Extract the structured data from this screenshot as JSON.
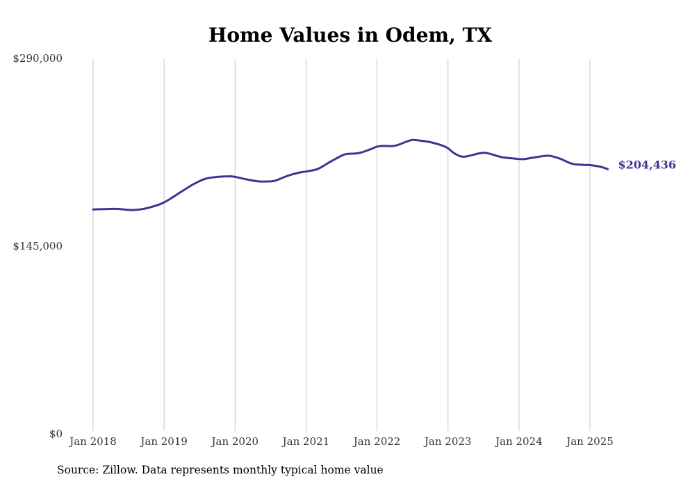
{
  "chart_data": {
    "type": "line",
    "title": "Home Values in Odem, TX",
    "xlabel": "",
    "ylabel": "",
    "ylim": [
      0,
      290000
    ],
    "y_ticks": [
      {
        "value": 0,
        "label": "$0"
      },
      {
        "value": 145000,
        "label": "$145,000"
      },
      {
        "value": 290000,
        "label": "$290,000"
      }
    ],
    "x_ticks": [
      {
        "value": 2018.0,
        "label": "Jan 2018"
      },
      {
        "value": 2019.0,
        "label": "Jan 2019"
      },
      {
        "value": 2020.0,
        "label": "Jan 2020"
      },
      {
        "value": 2021.0,
        "label": "Jan 2021"
      },
      {
        "value": 2022.0,
        "label": "Jan 2022"
      },
      {
        "value": 2023.0,
        "label": "Jan 2023"
      },
      {
        "value": 2024.0,
        "label": "Jan 2024"
      },
      {
        "value": 2025.0,
        "label": "Jan 2025"
      }
    ],
    "xlim": [
      2018.0,
      2025.25
    ],
    "grid": "vertical",
    "line_color": "#3b3595",
    "series": [
      {
        "name": "",
        "end_label": "$204,436",
        "points": [
          [
            2018.0,
            173300
          ],
          [
            2018.17,
            173600
          ],
          [
            2018.33,
            173800
          ],
          [
            2018.5,
            173000
          ],
          [
            2018.58,
            172900
          ],
          [
            2018.75,
            174200
          ],
          [
            2018.92,
            176900
          ],
          [
            2019.0,
            178800
          ],
          [
            2019.08,
            181300
          ],
          [
            2019.25,
            187300
          ],
          [
            2019.42,
            193000
          ],
          [
            2019.58,
            197000
          ],
          [
            2019.75,
            198500
          ],
          [
            2019.92,
            198900
          ],
          [
            2020.0,
            198500
          ],
          [
            2020.08,
            197500
          ],
          [
            2020.17,
            196500
          ],
          [
            2020.33,
            195000
          ],
          [
            2020.5,
            195000
          ],
          [
            2020.58,
            195800
          ],
          [
            2020.75,
            199500
          ],
          [
            2020.92,
            202000
          ],
          [
            2021.0,
            202600
          ],
          [
            2021.17,
            204700
          ],
          [
            2021.33,
            209800
          ],
          [
            2021.5,
            214800
          ],
          [
            2021.58,
            216200
          ],
          [
            2021.75,
            216900
          ],
          [
            2021.92,
            220100
          ],
          [
            2022.0,
            221900
          ],
          [
            2022.08,
            222400
          ],
          [
            2022.25,
            222500
          ],
          [
            2022.42,
            225800
          ],
          [
            2022.5,
            227000
          ],
          [
            2022.58,
            226700
          ],
          [
            2022.75,
            225300
          ],
          [
            2022.92,
            222700
          ],
          [
            2023.0,
            220600
          ],
          [
            2023.08,
            217000
          ],
          [
            2023.17,
            214500
          ],
          [
            2023.25,
            214200
          ],
          [
            2023.42,
            216400
          ],
          [
            2023.5,
            217100
          ],
          [
            2023.58,
            216500
          ],
          [
            2023.75,
            213800
          ],
          [
            2023.92,
            212700
          ],
          [
            2024.0,
            212300
          ],
          [
            2024.08,
            212300
          ],
          [
            2024.25,
            213800
          ],
          [
            2024.42,
            214800
          ],
          [
            2024.58,
            212500
          ],
          [
            2024.75,
            208600
          ],
          [
            2024.92,
            207700
          ],
          [
            2025.0,
            207600
          ],
          [
            2025.17,
            206000
          ],
          [
            2025.25,
            204436
          ]
        ]
      }
    ]
  },
  "source_note": "Source: Zillow. Data represents monthly typical home value"
}
